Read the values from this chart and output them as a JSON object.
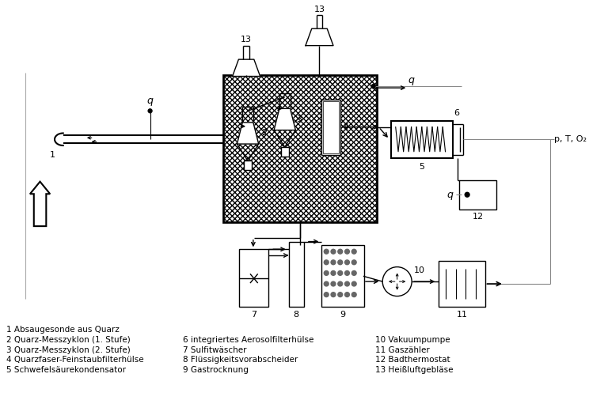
{
  "bg_color": "#ffffff",
  "line_color": "#000000",
  "legend_col1": [
    "1 Absaugesonde aus Quarz",
    "2 Quarz-Messzyklon (1. Stufe)",
    "3 Quarz-Messzyklon (2. Stufe)",
    "4 Quarzfaser-Feinstaubfilterhülse",
    "5 Schwefelsäurekondensator"
  ],
  "legend_col2_start": "6 integriertes Aerosolfilterhülse",
  "legend_col2": [
    "6 integriertes Aerosolfilterhülse",
    "7 Sulfitwäscher",
    "8 Flüssigkeitsvorabscheider",
    "9 Gastrocknung"
  ],
  "legend_col3": [
    "10 Vakuumpumpe",
    "11 Gaszähler",
    "12 Badthermostat",
    "13 Heißluftgebläse"
  ]
}
